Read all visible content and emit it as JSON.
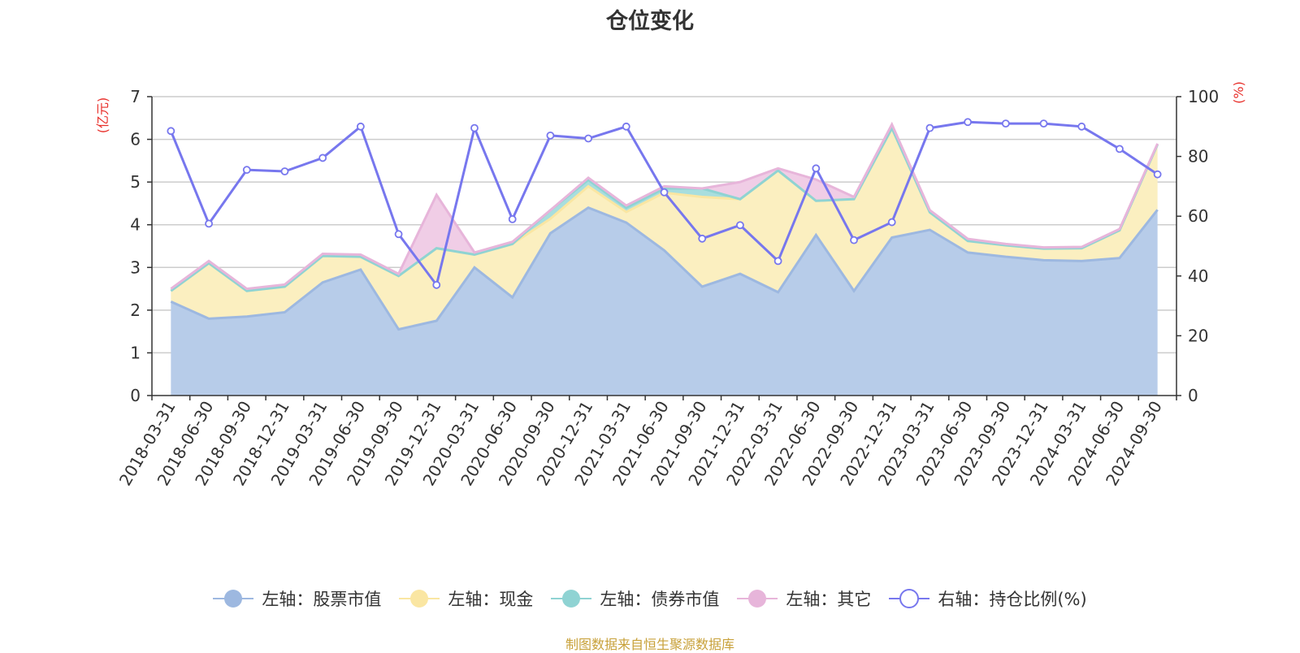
{
  "title": "仓位变化",
  "source": "制图数据来自恒生聚源数据库",
  "colors": {
    "stock": "#9db8e0",
    "stock_fill": "#b7cce9",
    "cash": "#fae6a2",
    "cash_fill": "#fbefc0",
    "bond": "#8fd3d3",
    "bond_fill": "#a8dede",
    "other": "#e7b5da",
    "other_fill": "#f0cde6",
    "ratio": "#7777ee",
    "unit_red": "#e8302b",
    "axis": "#333333",
    "grid": "#cccccc"
  },
  "chart_data": {
    "type": "area",
    "title": "仓位变化",
    "categories": [
      "2018-03-31",
      "2018-06-30",
      "2018-09-30",
      "2018-12-31",
      "2019-03-31",
      "2019-06-30",
      "2019-09-30",
      "2019-12-31",
      "2020-03-31",
      "2020-06-30",
      "2020-09-30",
      "2020-12-31",
      "2021-03-31",
      "2021-06-30",
      "2021-09-30",
      "2021-12-31",
      "2022-03-31",
      "2022-06-30",
      "2022-09-30",
      "2022-12-31",
      "2023-03-31",
      "2023-06-30",
      "2023-09-30",
      "2023-12-31",
      "2024-03-31",
      "2024-06-30",
      "2024-09-30"
    ],
    "left_axis": {
      "unit": "(亿元)",
      "ylim": [
        0,
        7
      ],
      "ticks": [
        "0",
        "1",
        "2",
        "3",
        "4",
        "5",
        "6",
        "7"
      ]
    },
    "right_axis": {
      "unit": "(%)",
      "ylim": [
        0,
        100
      ],
      "ticks": [
        "0",
        "20",
        "40",
        "60",
        "80",
        "100"
      ]
    },
    "stacked": true,
    "series": [
      {
        "name": "左轴：股票市值",
        "axis": "left",
        "type": "area",
        "values": [
          2.2,
          1.8,
          1.85,
          1.95,
          2.65,
          2.95,
          1.55,
          1.75,
          3.0,
          2.3,
          3.8,
          4.4,
          4.05,
          3.4,
          2.55,
          2.85,
          2.42,
          3.76,
          2.45,
          3.7,
          3.88,
          3.35,
          3.25,
          3.17,
          3.15,
          3.22,
          4.35
        ]
      },
      {
        "name": "左轴：现金",
        "axis": "left",
        "type": "area",
        "values": [
          0.25,
          1.3,
          0.6,
          0.6,
          0.62,
          0.3,
          1.25,
          1.7,
          0.3,
          1.25,
          0.34,
          0.5,
          0.25,
          1.35,
          2.1,
          1.75,
          2.85,
          0.8,
          2.15,
          2.56,
          0.41,
          0.27,
          0.27,
          0.27,
          0.3,
          0.65,
          1.53
        ]
      },
      {
        "name": "左轴：债券市值",
        "axis": "left",
        "type": "area",
        "values": [
          0,
          0,
          0,
          0,
          0,
          0,
          0,
          0,
          0,
          0,
          0.2,
          0.15,
          0.1,
          0.1,
          0.2,
          0,
          0,
          0,
          0,
          0,
          0,
          0,
          0,
          0,
          0,
          0,
          0
        ]
      },
      {
        "name": "左轴：其它",
        "axis": "left",
        "type": "area",
        "values": [
          0.05,
          0.05,
          0.05,
          0.05,
          0.05,
          0.05,
          0.05,
          1.25,
          0.05,
          0.05,
          0,
          0.05,
          0.05,
          0.05,
          0,
          0.4,
          0.05,
          0.5,
          0.05,
          0.09,
          0.05,
          0.05,
          0.03,
          0.03,
          0.03,
          0.03,
          0.02
        ]
      },
      {
        "name": "右轴：持仓比例(%)",
        "axis": "right",
        "type": "line",
        "values": [
          88.5,
          57.5,
          75.5,
          75,
          79.5,
          90,
          54,
          37,
          89.5,
          59,
          87,
          86,
          90,
          68,
          52.5,
          57,
          45,
          76,
          52,
          58,
          89.5,
          91.5,
          91,
          91,
          90,
          82.5,
          74
        ]
      }
    ]
  },
  "legend": [
    {
      "label": "左轴：股票市值",
      "kind": "area",
      "color_key": "stock"
    },
    {
      "label": "左轴：现金",
      "kind": "area",
      "color_key": "cash"
    },
    {
      "label": "左轴：债券市值",
      "kind": "area",
      "color_key": "bond"
    },
    {
      "label": "左轴：其它",
      "kind": "area",
      "color_key": "other"
    },
    {
      "label": "右轴：持仓比例(%)",
      "kind": "line",
      "color_key": "ratio"
    }
  ]
}
